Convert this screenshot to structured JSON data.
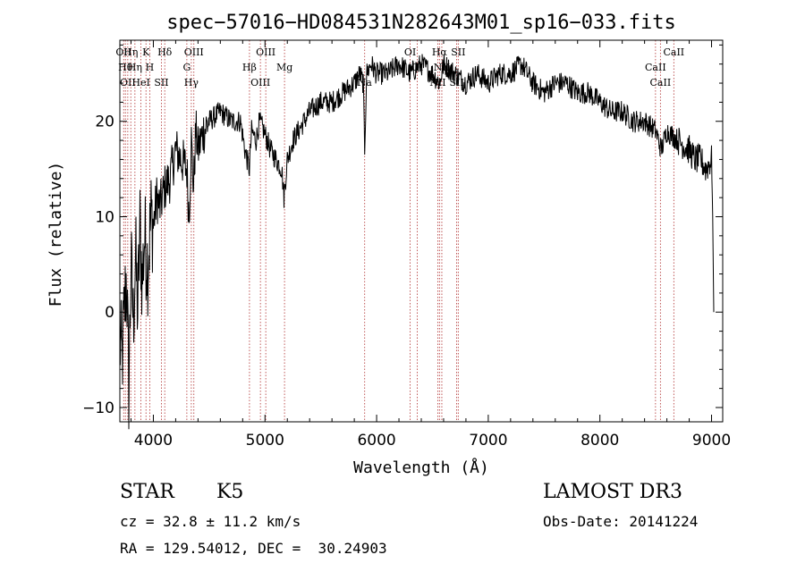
{
  "chart_data": {
    "type": "line",
    "title": "spec−57016−HD084531N282643M01_sp16−033.fits",
    "xlabel": "Wavelength (Å)",
    "ylabel": "Flux (relative)",
    "xlim": [
      3700,
      9100
    ],
    "ylim": [
      -11.5,
      28.5
    ],
    "xticks": [
      4000,
      5000,
      6000,
      7000,
      8000,
      9000
    ],
    "yticks": [
      -10,
      0,
      10,
      20
    ],
    "series": [
      {
        "name": "flux",
        "x": [
          3700,
          3720,
          3740,
          3760,
          3780,
          3800,
          3820,
          3840,
          3860,
          3880,
          3900,
          3920,
          3950,
          3980,
          4000,
          4030,
          4060,
          4100,
          4150,
          4200,
          4250,
          4300,
          4320,
          4340,
          4360,
          4380,
          4400,
          4450,
          4500,
          4600,
          4700,
          4780,
          4820,
          4860,
          4880,
          4920,
          4950,
          4990,
          5050,
          5100,
          5150,
          5170,
          5185,
          5200,
          5250,
          5300,
          5400,
          5500,
          5600,
          5700,
          5800,
          5850,
          5880,
          5893,
          5910,
          5950,
          6000,
          6100,
          6200,
          6300,
          6400,
          6500,
          6563,
          6600,
          6700,
          6800,
          6900,
          7000,
          7100,
          7200,
          7300,
          7400,
          7500,
          7600,
          7700,
          7800,
          7900,
          8000,
          8100,
          8200,
          8300,
          8400,
          8500,
          8550,
          8600,
          8700,
          8800,
          8850,
          8900,
          8950,
          9000,
          9010,
          9020
        ],
        "y": [
          -3,
          -5,
          0,
          4,
          -8,
          5,
          -1,
          6,
          0,
          9,
          3,
          8,
          5,
          10,
          9,
          12,
          11,
          13,
          14,
          17,
          16,
          15,
          10,
          18,
          13,
          19,
          17,
          19,
          20,
          21,
          20,
          20,
          17,
          15,
          19,
          18,
          20,
          19,
          17,
          16,
          15,
          12,
          14,
          16,
          18,
          19,
          21,
          22,
          22,
          23,
          24,
          25,
          24,
          17,
          25,
          26,
          25,
          25,
          26,
          25,
          26,
          25,
          24,
          26,
          25,
          24,
          25,
          24,
          25,
          25,
          26,
          24,
          23,
          24,
          24,
          23,
          23,
          22,
          21,
          21,
          20,
          20,
          19,
          17,
          19,
          18,
          17,
          16,
          16,
          15,
          16,
          10,
          0
        ]
      }
    ],
    "lines": [
      {
        "wl": 3734,
        "label": "OII"
      },
      {
        "wl": 3750,
        "label": "Hθ"
      },
      {
        "wl": 3771,
        "label": "OII"
      },
      {
        "wl": 3798,
        "label": "Hη"
      },
      {
        "wl": 3835,
        "label": "Hη"
      },
      {
        "wl": 3889,
        "label": "HeI"
      },
      {
        "wl": 3934,
        "label": "K"
      },
      {
        "wl": 3968,
        "label": "H"
      },
      {
        "wl": 4072,
        "label": "SII"
      },
      {
        "wl": 4102,
        "label": "Hδ"
      },
      {
        "wl": 4300,
        "label": "G"
      },
      {
        "wl": 4340,
        "label": "Hγ"
      },
      {
        "wl": 4363,
        "label": "OIII"
      },
      {
        "wl": 4861,
        "label": "Hβ"
      },
      {
        "wl": 4959,
        "label": "OIII"
      },
      {
        "wl": 5007,
        "label": "OIII"
      },
      {
        "wl": 5175,
        "label": "Mg"
      },
      {
        "wl": 5893,
        "label": "Na"
      },
      {
        "wl": 6300,
        "label": "OI"
      },
      {
        "wl": 6364,
        "label": "OI"
      },
      {
        "wl": 6548,
        "label": "NII"
      },
      {
        "wl": 6563,
        "label": "Hα"
      },
      {
        "wl": 6584,
        "label": "NII"
      },
      {
        "wl": 6717,
        "label": "SII"
      },
      {
        "wl": 6731,
        "label": "SII"
      },
      {
        "wl": 8498,
        "label": "CaII"
      },
      {
        "wl": 8542,
        "label": "CaII"
      },
      {
        "wl": 8662,
        "label": "CaII"
      }
    ]
  },
  "info": {
    "object_class": "STAR",
    "subclass": "K5",
    "survey": "LAMOST DR3",
    "cz": "cz = 32.8 ± 11.2 km/s",
    "coords": "RA = 129.54012, DEC =  30.24903",
    "obs_date": "Obs-Date: 20141224"
  },
  "colors": {
    "spectrum": "#000000",
    "line_marker": "#b03030",
    "frame": "#000000"
  }
}
